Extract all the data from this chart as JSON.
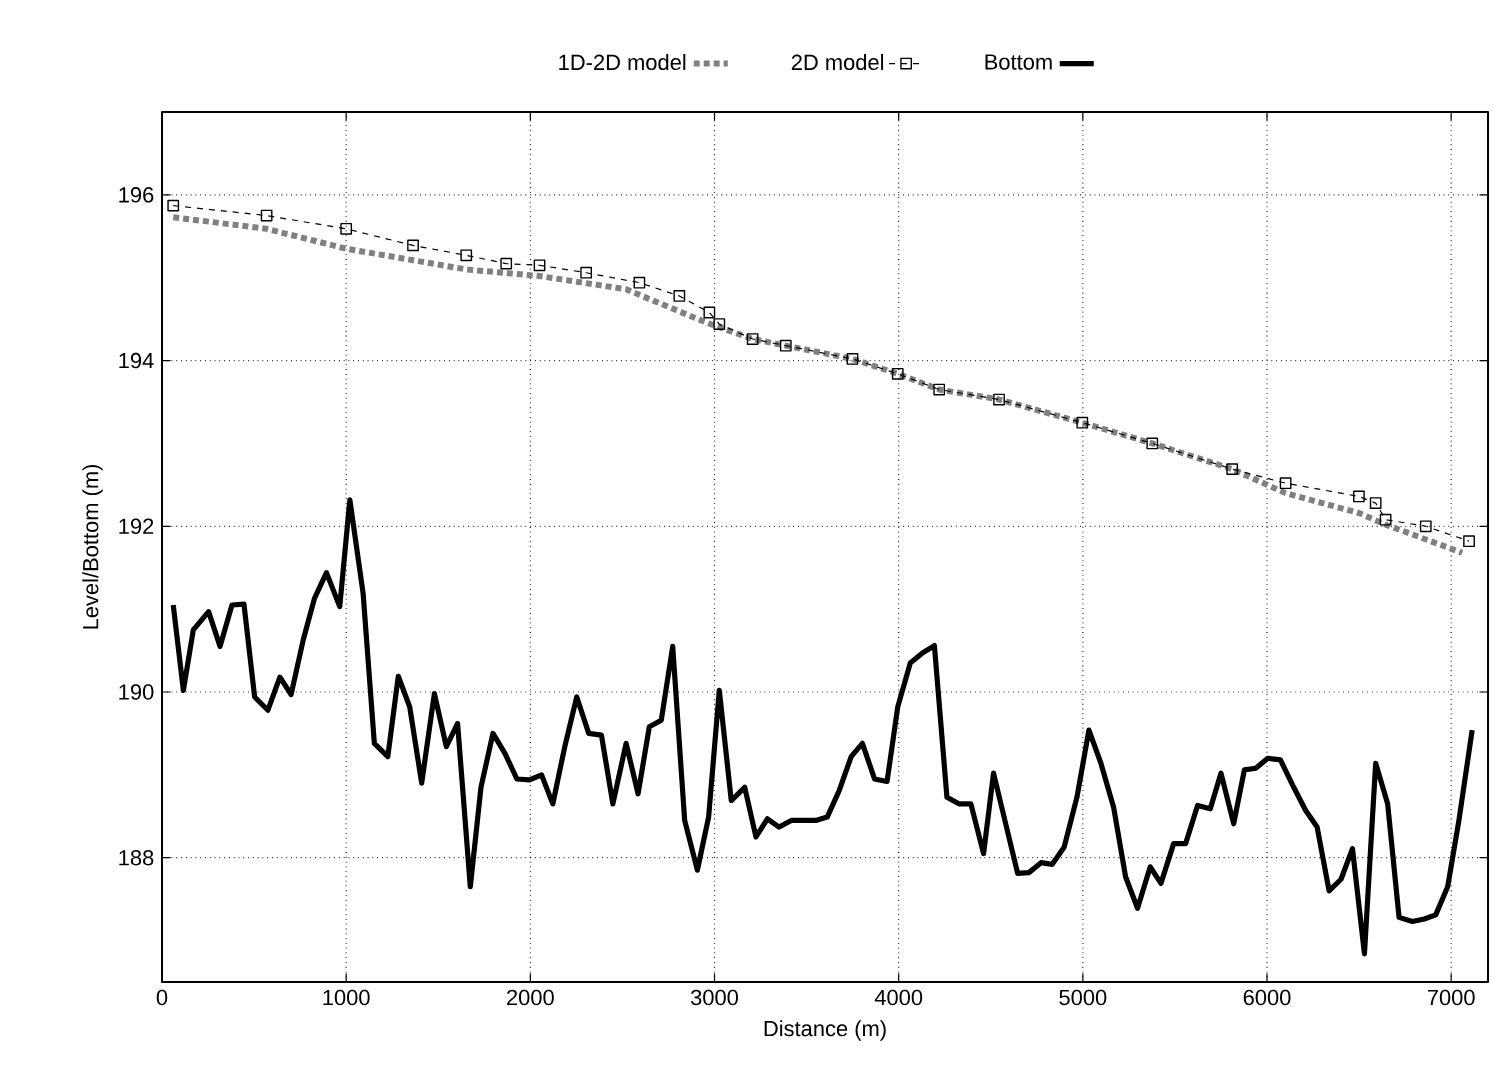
{
  "chart_data": {
    "type": "line",
    "xlabel": "Distance (m)",
    "ylabel": "Level/Bottom (m)",
    "xlim": [
      0,
      7200
    ],
    "ylim": [
      186.5,
      197
    ],
    "xticks": [
      0,
      1000,
      2000,
      3000,
      4000,
      5000,
      6000,
      7000
    ],
    "yticks": [
      188,
      190,
      192,
      194,
      196
    ],
    "grid": true,
    "legend": "top",
    "series": [
      {
        "name": "1D-2D model",
        "color": "#808080",
        "line_style": "dotted",
        "marker": "none",
        "x": [
          61,
          568,
          1000,
          1652,
          2050,
          2520,
          2737,
          2954,
          3207,
          3387,
          3749,
          3995,
          4220,
          4545,
          4997,
          5377,
          5811,
          6101,
          6499,
          6644,
          7060
        ],
        "values": [
          195.73,
          195.59,
          195.35,
          195.1,
          195.02,
          194.86,
          194.66,
          194.46,
          194.26,
          194.18,
          194.02,
          193.84,
          193.65,
          193.53,
          193.25,
          193.0,
          192.69,
          192.4,
          192.16,
          192.02,
          191.68
        ]
      },
      {
        "name": "2D model",
        "color": "#000000",
        "line_style": "dashed",
        "marker": "square",
        "x": [
          61,
          568,
          1000,
          1363,
          1652,
          1869,
          2050,
          2303,
          2592,
          2809,
          2972,
          3026,
          3207,
          3387,
          3749,
          3995,
          4220,
          4545,
          4997,
          5377,
          5811,
          6101,
          6499,
          6590,
          6644,
          6862,
          7097
        ],
        "values": [
          195.87,
          195.75,
          195.59,
          195.39,
          195.27,
          195.17,
          195.15,
          195.06,
          194.94,
          194.78,
          194.58,
          194.44,
          194.26,
          194.18,
          194.02,
          193.84,
          193.65,
          193.53,
          193.25,
          193.0,
          192.69,
          192.52,
          192.36,
          192.28,
          192.08,
          192.0,
          191.82
        ]
      },
      {
        "name": "Bottom",
        "color": "#000000",
        "line_style": "solid",
        "marker": "none",
        "x": [
          61,
          116,
          170,
          253,
          315,
          380,
          445,
          503,
          575,
          640,
          701,
          767,
          828,
          893,
          965,
          1020,
          1092,
          1153,
          1226,
          1283,
          1345,
          1410,
          1479,
          1544,
          1605,
          1674,
          1732,
          1797,
          1862,
          1927,
          1996,
          2061,
          2122,
          2187,
          2252,
          2317,
          2386,
          2448,
          2520,
          2585,
          2646,
          2711,
          2773,
          2838,
          2907,
          2968,
          3026,
          3091,
          3164,
          3225,
          3287,
          3351,
          3417,
          3478,
          3550,
          3612,
          3677,
          3742,
          3803,
          3869,
          3937,
          3995,
          4063,
          4129,
          4194,
          4262,
          4327,
          4392,
          4461,
          4515,
          4581,
          4646,
          4707,
          4773,
          4834,
          4899,
          4968,
          5033,
          5098,
          5167,
          5232,
          5297,
          5366,
          5424,
          5493,
          5558,
          5623,
          5692,
          5750,
          5819,
          5877,
          5939,
          6004,
          6073,
          6145,
          6210,
          6272,
          6337,
          6402,
          6464,
          6529,
          6590,
          6655,
          6717,
          6789,
          6854,
          6916,
          6981,
          7042,
          7114
        ],
        "values": [
          191.05,
          190.02,
          190.75,
          190.97,
          190.55,
          191.05,
          191.06,
          189.94,
          189.78,
          190.18,
          189.97,
          190.63,
          191.13,
          191.44,
          191.03,
          192.32,
          191.19,
          189.38,
          189.22,
          190.19,
          189.82,
          188.9,
          189.98,
          189.34,
          189.62,
          187.65,
          188.85,
          189.5,
          189.26,
          188.95,
          188.94,
          189.0,
          188.65,
          189.34,
          189.94,
          189.5,
          189.48,
          188.65,
          189.38,
          188.77,
          189.58,
          189.66,
          190.55,
          188.45,
          187.85,
          188.49,
          190.02,
          188.69,
          188.85,
          188.25,
          188.47,
          188.37,
          188.45,
          188.45,
          188.45,
          188.49,
          188.81,
          189.22,
          189.38,
          188.95,
          188.92,
          189.82,
          190.35,
          190.47,
          190.56,
          188.73,
          188.65,
          188.65,
          188.05,
          189.02,
          188.41,
          187.81,
          187.82,
          187.94,
          187.92,
          188.13,
          188.73,
          189.54,
          189.14,
          188.61,
          187.77,
          187.39,
          187.89,
          187.69,
          188.17,
          188.17,
          188.63,
          188.59,
          189.02,
          188.41,
          189.06,
          189.08,
          189.2,
          189.18,
          188.85,
          188.57,
          188.37,
          187.6,
          187.74,
          188.11,
          186.84,
          189.14,
          188.65,
          187.28,
          187.23,
          187.26,
          187.31,
          187.65,
          188.45,
          189.54
        ]
      }
    ]
  }
}
